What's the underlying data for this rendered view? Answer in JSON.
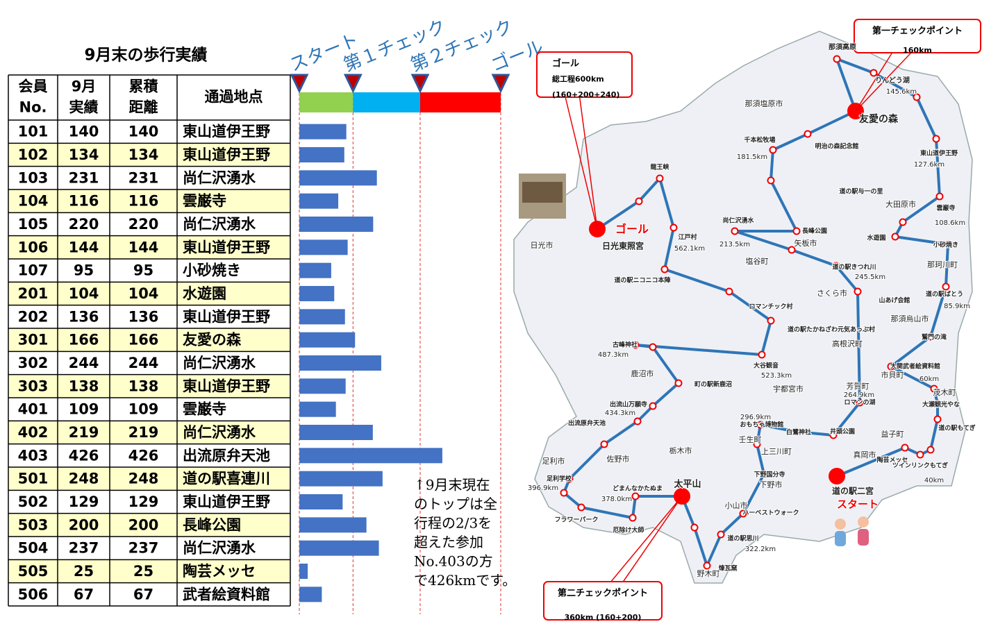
{
  "title": "9月末の歩行実績",
  "table": {
    "header": [
      [
        "会員",
        "No."
      ],
      [
        "9月",
        "実績"
      ],
      [
        "累積",
        "距離"
      ],
      [
        "通過地点"
      ]
    ],
    "rows": [
      [
        101,
        140,
        140,
        "東山道伊王野"
      ],
      [
        102,
        134,
        134,
        "東山道伊王野"
      ],
      [
        103,
        231,
        231,
        "尚仁沢湧水"
      ],
      [
        104,
        116,
        116,
        "雲巌寺"
      ],
      [
        105,
        220,
        220,
        "尚仁沢湧水"
      ],
      [
        106,
        144,
        144,
        "東山道伊王野"
      ],
      [
        107,
        95,
        95,
        "小砂焼き"
      ],
      [
        201,
        104,
        104,
        "水遊園"
      ],
      [
        202,
        136,
        136,
        "東山道伊王野"
      ],
      [
        301,
        166,
        166,
        "友愛の森"
      ],
      [
        302,
        244,
        244,
        "尚仁沢湧水"
      ],
      [
        303,
        138,
        138,
        "東山道伊王野"
      ],
      [
        401,
        109,
        109,
        "雲巌寺"
      ],
      [
        402,
        219,
        219,
        "尚仁沢湧水"
      ],
      [
        403,
        426,
        426,
        "出流原弁天池"
      ],
      [
        501,
        248,
        248,
        "道の駅喜連川"
      ],
      [
        502,
        129,
        129,
        "東山道伊王野"
      ],
      [
        503,
        200,
        200,
        "長峰公園"
      ],
      [
        504,
        237,
        237,
        "尚仁沢湧水"
      ],
      [
        505,
        25,
        25,
        "陶芸メッセ"
      ],
      [
        506,
        67,
        67,
        "武者絵資料館"
      ]
    ]
  },
  "chart_data": {
    "type": "bar",
    "xlim": [
      0,
      600
    ],
    "color": "#4472c4",
    "milestones": [
      {
        "label": "スタート",
        "value": 0
      },
      {
        "label": "第１チェック",
        "value": 160
      },
      {
        "label": "第２チェック",
        "value": 360
      },
      {
        "label": "ゴール",
        "value": 600
      }
    ],
    "segment_colors": [
      "#92d050",
      "#00b0f0",
      "#ff0000"
    ]
  },
  "note": [
    "↑9月末現在",
    "のトップは全",
    "行程の2/3を",
    "超えた参加",
    "No.403の方",
    "で426kmです。"
  ],
  "map": {
    "callouts": [
      [
        "第一チェックポイント",
        "160km"
      ],
      [
        "ゴール",
        "総工程600km",
        "(160+200+240)"
      ],
      [
        "第二チェックポイント",
        "360km (160+200)"
      ]
    ],
    "labels": [
      "那須高原",
      "りんどう湖",
      "145.6km",
      "友愛の森",
      "那須塩原市",
      "明治の森記念館",
      "千本松牧場",
      "181.5km",
      "東山道伊王野",
      "127.6km",
      "道の駅与一の里",
      "大田原市",
      "雲巌寺",
      "108.6km",
      "尚仁沢湧水",
      "213.5km",
      "長峰公園",
      "矢板市",
      "水遊園",
      "小砂焼き",
      "那珂川町",
      "道の駅きつれ川",
      "245.5km",
      "塩谷町",
      "道の駅ばとう",
      "85.9km",
      "さくら市",
      "山あげ会館",
      "那須烏山市",
      "ロマンチック村",
      "道の駅たかねざわ元気あっぷ村",
      "高根沢町",
      "鷲門の滝",
      "大谷観音",
      "523.3km",
      "古峰神社",
      "487.3km",
      "鹿沼市",
      "大関武者絵資料館",
      "市貝町",
      "60km",
      "宇都宮市",
      "町の駅新鹿沼",
      "芳賀町",
      "264.9km",
      "ロマンの湖",
      "茂木町",
      "大瀬観光やな",
      "出流山万願寺",
      "434.3km",
      "296.9km",
      "おもちゃ博物館",
      "出流原弁天池",
      "白鷺神社",
      "井頭公園",
      "道の駅もてぎ",
      "壬生町",
      "上三川町",
      "益子町",
      "真岡市",
      "陶芸メッセ",
      "ツインリンクもてぎ",
      "40km",
      "足利市",
      "佐野市",
      "栃木市",
      "太平山",
      "足利学校",
      "396.9km",
      "どまんなかたぬま",
      "378.0km",
      "下野国分寺",
      "下野市",
      "道の駅二宮",
      "スタート",
      "フラワーパーク",
      "厄除け大師",
      "小山市",
      "ハーベストウォーク",
      "道の駅思川",
      "322.2km",
      "煉瓦窯",
      "野木町",
      "日光市",
      "日光東照宮",
      "ゴール",
      "江戸村",
      "562.1km",
      "龍王峡",
      "道の駅ニコニコ本陣"
    ]
  }
}
